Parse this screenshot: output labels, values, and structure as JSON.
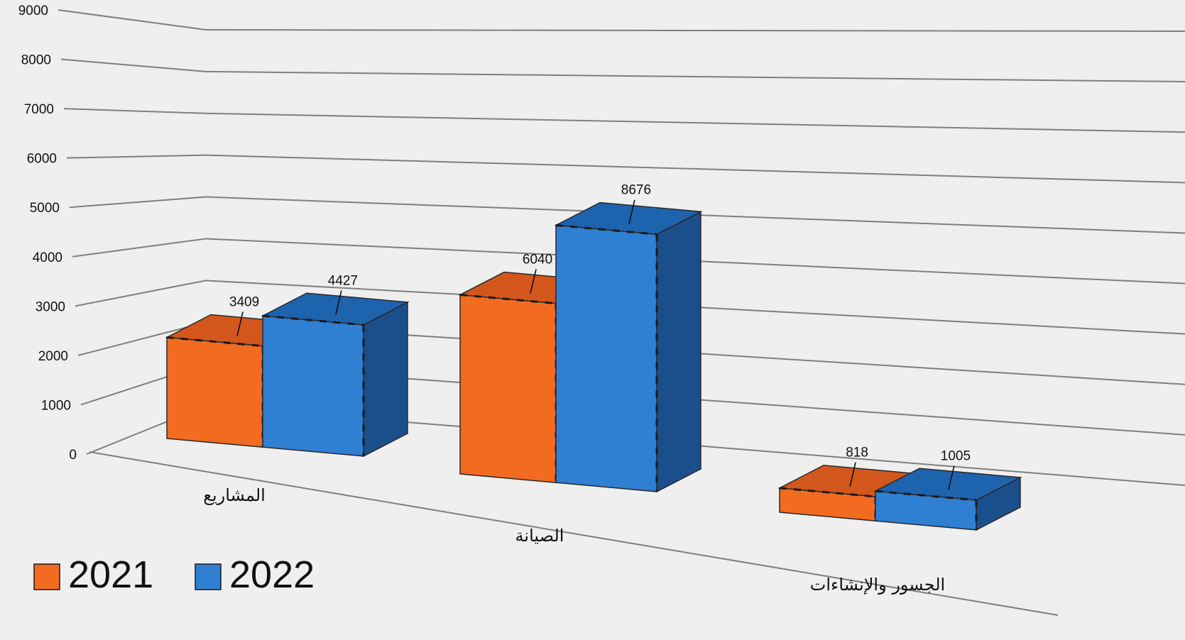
{
  "chart_data": {
    "type": "bar",
    "categories": [
      "المشاريع",
      "الصيانة",
      "الجسور والإنشاءات"
    ],
    "series": [
      {
        "name": "2021",
        "values": [
          3409,
          6040,
          818
        ],
        "color": "#f26b21",
        "top_color": "#d3561c",
        "side_color": "#c9531c"
      },
      {
        "name": "2022",
        "values": [
          4427,
          8676,
          1005
        ],
        "color": "#2f7fd2",
        "top_color": "#1d63ad",
        "side_color": "#1b4f8c"
      }
    ],
    "ylim": [
      0,
      9000
    ],
    "yticks": [
      "0",
      "1000",
      "2000",
      "3000",
      "4000",
      "5000",
      "6000",
      "7000",
      "8000",
      "9000"
    ],
    "grid": true,
    "legend_position": "bottom-left",
    "style": "3d-clustered-column",
    "background": "#efefef"
  }
}
